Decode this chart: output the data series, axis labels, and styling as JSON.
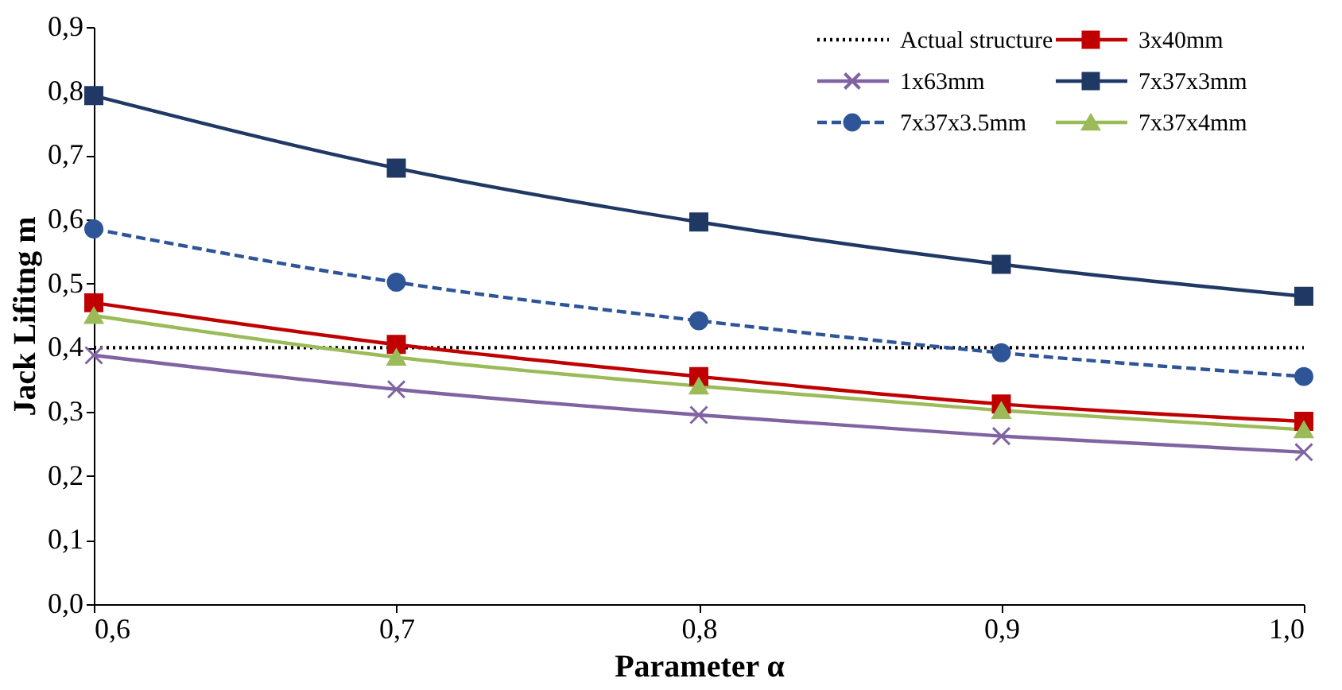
{
  "chart_data": {
    "type": "line",
    "xlabel": "Parameter α",
    "ylabel": "Jack Lifitng m",
    "x": [
      0.6,
      0.7,
      0.8,
      0.9,
      1.0
    ],
    "xlim": [
      0.6,
      1.0
    ],
    "xticks": [
      {
        "value": 0.6,
        "label": "0,6"
      },
      {
        "value": 0.7,
        "label": "0,7"
      },
      {
        "value": 0.8,
        "label": "0,8"
      },
      {
        "value": 0.9,
        "label": "0,9"
      },
      {
        "value": 1.0,
        "label": "1,0"
      }
    ],
    "ylim": [
      0,
      0.9
    ],
    "yticks": [
      {
        "value": 0,
        "label": "0,0"
      },
      {
        "value": 0.1,
        "label": "0,1"
      },
      {
        "value": 0.2,
        "label": "0,2"
      },
      {
        "value": 0.3,
        "label": "0,3"
      },
      {
        "value": 0.4,
        "label": "0,4"
      },
      {
        "value": 0.5,
        "label": "0,5"
      },
      {
        "value": 0.6,
        "label": "0,6"
      },
      {
        "value": 0.7,
        "label": "0,7"
      },
      {
        "value": 0.8,
        "label": "0,8"
      },
      {
        "value": 0.9,
        "label": "0,9"
      }
    ],
    "grid": false,
    "legend": "top right",
    "series": [
      {
        "name": "Actual structure",
        "color": "#000000",
        "values": [
          0.4,
          0.4,
          0.4,
          0.4,
          0.4
        ],
        "marker": "none",
        "line_style": "dotted"
      },
      {
        "name": "3x40mm",
        "color": "#c00000",
        "values": [
          0.47,
          0.405,
          0.355,
          0.312,
          0.285
        ],
        "marker": "square",
        "line_style": "solid"
      },
      {
        "name": "1x63mm",
        "color": "#8064a2",
        "values": [
          0.388,
          0.335,
          0.295,
          0.262,
          0.237
        ],
        "marker": "cross",
        "line_style": "solid"
      },
      {
        "name": "7x37x3mm",
        "color": "#1f3864",
        "values": [
          0.793,
          0.68,
          0.596,
          0.53,
          0.48
        ],
        "marker": "square",
        "line_style": "solid"
      },
      {
        "name": "7x37x3.5mm",
        "color": "#2e5597",
        "values": [
          0.585,
          0.502,
          0.442,
          0.392,
          0.355
        ],
        "marker": "circle",
        "line_style": "dashed"
      },
      {
        "name": "7x37x4mm",
        "color": "#9bbb59",
        "values": [
          0.45,
          0.385,
          0.34,
          0.302,
          0.272
        ],
        "marker": "triangle",
        "line_style": "solid"
      }
    ]
  }
}
